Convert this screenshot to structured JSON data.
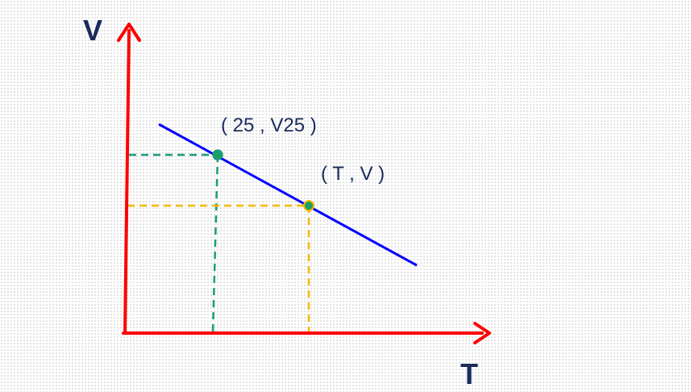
{
  "colors": {
    "axis": "#ff0000",
    "line": "#0000ff",
    "guide_point_1": "#1a9c7c",
    "guide_point_2": "#f5b800",
    "point_fill": "#1aa066",
    "label_text": "#1a2a5a",
    "axis_title_text": "#1a2a5a"
  },
  "axes": {
    "y_title": "V",
    "x_title": "T"
  },
  "points": [
    {
      "label": "( 25 , V25 )"
    },
    {
      "label": "( T , V )"
    }
  ]
}
